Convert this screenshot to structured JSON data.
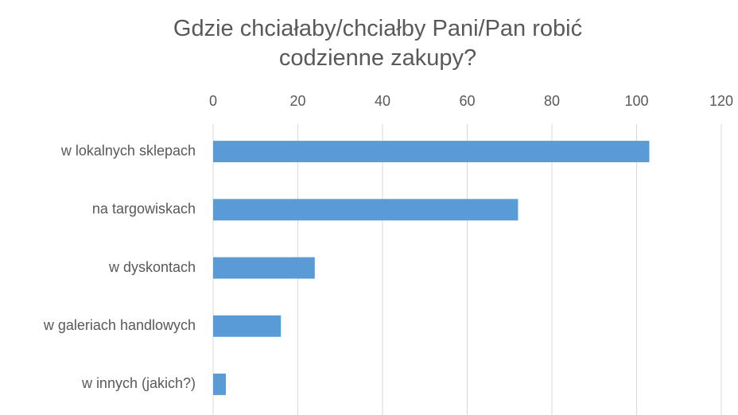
{
  "chart_data": {
    "type": "bar",
    "orientation": "horizontal",
    "title": "Gdzie chciałaby/chciałby Pani/Pan robić codzienne zakupy?",
    "categories": [
      "w lokalnych sklepach",
      "na targowiskach",
      "w dyskontach",
      "w galeriach handlowych",
      "w innych (jakich?)"
    ],
    "values": [
      103,
      72,
      24,
      16,
      3
    ],
    "color": "#5b9bd5",
    "xlim": [
      0,
      120
    ],
    "xticks": [
      0,
      20,
      40,
      60,
      80,
      100,
      120
    ],
    "grid": true
  }
}
